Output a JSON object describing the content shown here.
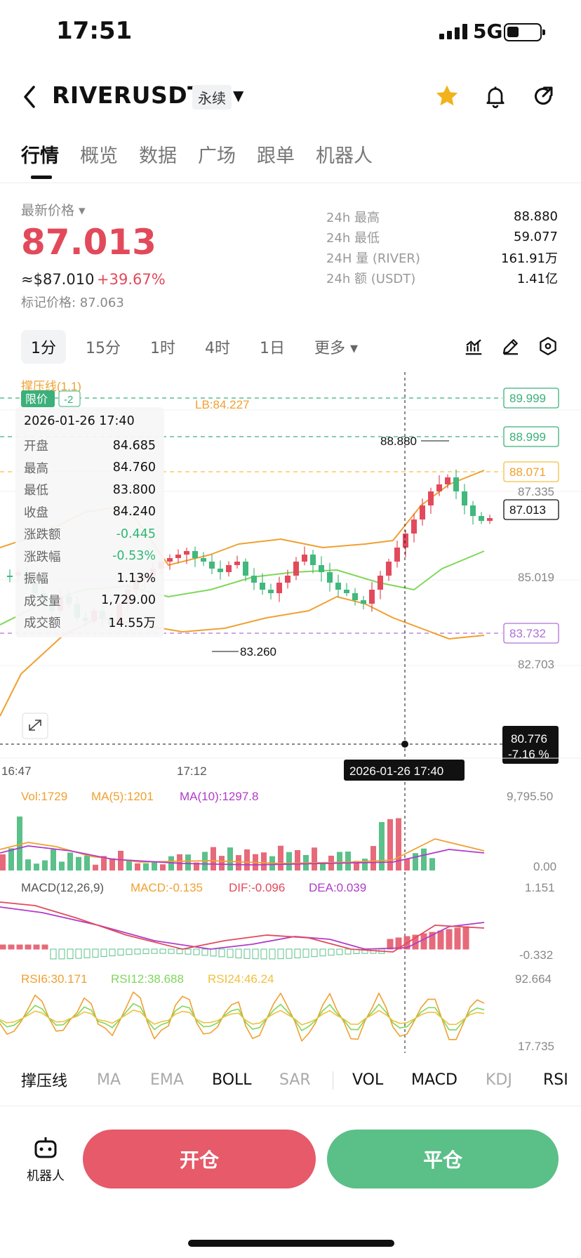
{
  "status": {
    "time": "17:51",
    "network": "5G"
  },
  "header": {
    "symbol": "RIVERUSDT",
    "contract_type": "永续"
  },
  "tabs": [
    "行情",
    "概览",
    "数据",
    "广场",
    "跟单",
    "机器人"
  ],
  "price": {
    "latest_label": "最新价格",
    "latest": "87.013",
    "usd": "≈$87.010",
    "change_pct": "+39.67%",
    "mark_price": "标记价格: 87.063"
  },
  "stats": [
    {
      "label": "24h  最高",
      "value": "88.880"
    },
    {
      "label": "24h  最低",
      "value": "59.077"
    },
    {
      "label": "24H  量 (RIVER)",
      "value": "161.91万"
    },
    {
      "label": "24h  额 (USDT)",
      "value": "1.41亿"
    }
  ],
  "timeframes": [
    "1分",
    "15分",
    "1时",
    "4时",
    "1日",
    "更多"
  ],
  "active_timeframe": "1分",
  "chart": {
    "support_label": "撑压线(1,1)",
    "limit_tag": "限价",
    "limit_count": "-2",
    "lb_label": "LB:84.227",
    "ohlc_box": {
      "datetime": "2026-01-26 17:40",
      "rows": [
        {
          "k": "开盘",
          "v": "84.685"
        },
        {
          "k": "最高",
          "v": "84.760"
        },
        {
          "k": "最低",
          "v": "83.800"
        },
        {
          "k": "收盘",
          "v": "84.240"
        },
        {
          "k": "涨跌额",
          "v": "-0.445"
        },
        {
          "k": "涨跌幅",
          "v": "-0.53%"
        },
        {
          "k": "振幅",
          "v": "1.13%"
        },
        {
          "k": "成交量",
          "v": "1,729.00"
        },
        {
          "k": "成交额",
          "v": "14.55万"
        }
      ]
    },
    "price_tags": {
      "p1": "89.999",
      "p2": "88.999",
      "p3": "88.071",
      "p4": "87.013",
      "p5": "83.732"
    },
    "axis_labels": [
      "87.335",
      "85.019",
      "82.703"
    ],
    "high_annot": "88.880",
    "low_annot": "83.260",
    "crosshair": {
      "price": "80.776",
      "pct": "-7.16 %",
      "time": "2026-01-26 17:40"
    },
    "time_labels": [
      "16:47",
      "17:12"
    ],
    "volume": {
      "vol": "Vol:1729",
      "ma5": "MA(5):1201",
      "ma10": "MA(10):1297.8",
      "max": "9,795.50",
      "min": "0.00"
    },
    "macd": {
      "name": "MACD(12,26,9)",
      "macd": "MACD:-0.135",
      "dif": "DIF:-0.096",
      "dea": "DEA:0.039",
      "max": "1.151",
      "min": "-0.332"
    },
    "rsi": {
      "r6": "RSI6:30.171",
      "r12": "RSI12:38.688",
      "r24": "RSI24:46.24",
      "max": "92.664",
      "min": "17.735"
    },
    "colors": {
      "up": "#e24a5b",
      "down": "#41b87c",
      "boll": "#f0a030",
      "mid": "#7fd85a",
      "macd_purple": "#b03cc8"
    }
  },
  "indicators": [
    "撑压线",
    "MA",
    "EMA",
    "BOLL",
    "SAR",
    "VOL",
    "MACD",
    "KDJ",
    "RSI"
  ],
  "footer": {
    "robot": "机器人",
    "open": "开仓",
    "close": "平仓"
  }
}
